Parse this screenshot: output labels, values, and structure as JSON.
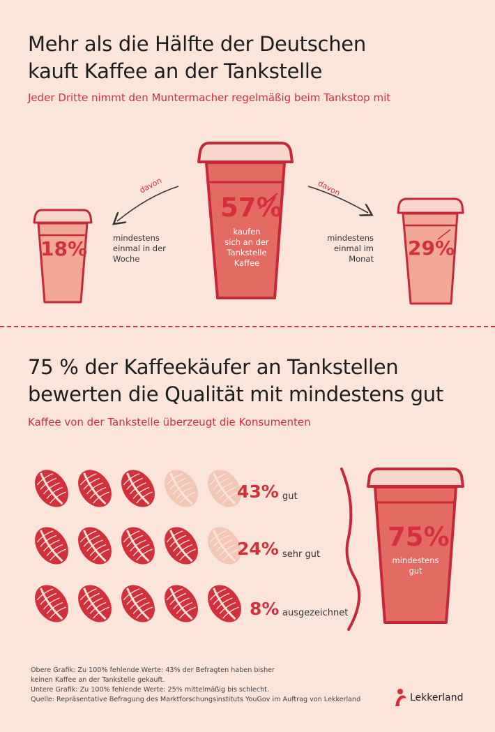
{
  "header": {
    "title_line1": "Mehr als die Hälfte der Deutschen",
    "title_line2": "kauft Kaffee an der Tankstelle",
    "subtitle": "Jeder Dritte nimmt den Muntermacher regelmäßig beim Tankstop mit"
  },
  "top": {
    "center_pct": "57%",
    "center_caption": [
      "kaufen",
      "sich an der",
      "Tankstelle",
      "Kaffee"
    ],
    "left_pct": "18%",
    "left_caption": [
      "mindestens",
      "einmal in der",
      "Woche"
    ],
    "right_pct": "29%",
    "right_caption": [
      "mindestens",
      "einmal im",
      "Monat"
    ],
    "arrow_label": "davon"
  },
  "bottom": {
    "title_line1": "75 % der Kaffeekäufer an Tankstellen",
    "title_line2": "bewerten die Qualität mit mindestens gut",
    "subtitle": "Kaffee von der Tankstelle überzeugt die Konsumenten",
    "total_pct": "75%",
    "total_caption": [
      "mindestens",
      "gut"
    ]
  },
  "chart_data": [
    {
      "type": "bar",
      "categories": [
        "kaufen sich an der Tankstelle Kaffee",
        "mindestens einmal in der Woche",
        "mindestens einmal im Monat"
      ],
      "values": [
        57,
        18,
        29
      ],
      "unit": "%"
    },
    {
      "type": "bar",
      "categories": [
        "gut",
        "sehr gut",
        "ausgezeichnet"
      ],
      "values": [
        43,
        24,
        8
      ],
      "labels": [
        "43%",
        "24%",
        "8%"
      ],
      "filled_beans": [
        3,
        4,
        5
      ],
      "total_beans": 5,
      "total": 75,
      "unit": "%"
    }
  ],
  "footnotes": [
    "Obere Grafik: Zu 100% fehlende Werte: 43% der Befragten haben bisher",
    "keinen Kaffee an der Tankstelle gekauft.",
    "Untere Grafik: Zu 100% fehlende Werte: 25% mittelmäßig bis schlecht.",
    "Quelle: Repräsentative Befragung des Marktforschungsinstituts YouGov im Auftrag von Lekkerland"
  ],
  "brand": {
    "name": "Lekkerland",
    "color": "#d2303d"
  },
  "colors": {
    "accent": "#d2303d",
    "cup_dark": "#e46b62",
    "cup_light": "#f2a895",
    "bean_light": "#f3c7b6",
    "background": "#fbe4da"
  }
}
